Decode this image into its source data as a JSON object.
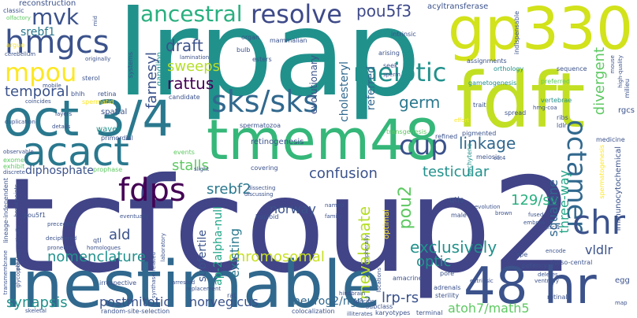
{
  "word_cloud": {
    "background": "#ffffff",
    "palette": [
      "#440154",
      "#3b528b",
      "#21918c",
      "#5ec962",
      "#fde725"
    ],
    "words": [
      {
        "text": "lrpap",
        "color": "#21918c"
      },
      {
        "text": "tcfcoup2",
        "color": "#414487"
      },
      {
        "text": "inestimable",
        "color": "#31688e"
      },
      {
        "text": "tmem48",
        "color": "#35b779"
      },
      {
        "text": "gp330",
        "color": "#d2e21b"
      },
      {
        "text": "fdft",
        "color": "#c2df23"
      },
      {
        "text": "oct 3/4",
        "color": "#2a788e"
      },
      {
        "text": "48 hr",
        "color": "#3b528b"
      },
      {
        "text": "sks/sks",
        "color": "#31688e"
      },
      {
        "text": "acact",
        "color": "#2a788e"
      },
      {
        "text": "hmgcs",
        "color": "#3b528b"
      },
      {
        "text": "mvk",
        "color": "#3b528b"
      },
      {
        "text": "mpou",
        "color": "#fde725"
      },
      {
        "text": "ancestral",
        "color": "#29af7f"
      },
      {
        "text": "resolve",
        "color": "#3e4a89"
      },
      {
        "text": "meiotic",
        "color": "#21918c"
      },
      {
        "text": "fdps",
        "color": "#440154"
      },
      {
        "text": "cup",
        "color": "#3b528b"
      },
      {
        "text": "octamer",
        "color": "#31688e"
      },
      {
        "text": "chr",
        "color": "#3b528b"
      },
      {
        "text": "pou5f3",
        "color": "#3e4989"
      },
      {
        "text": "temporal",
        "color": "#3b528b"
      },
      {
        "text": "rattus",
        "color": "#440154"
      },
      {
        "text": "sweeps",
        "color": "#b5de2b"
      },
      {
        "text": "draft",
        "color": "#3b528b"
      },
      {
        "text": "farnesyl",
        "color": "#3b528b"
      },
      {
        "text": "germ",
        "color": "#2a788e"
      },
      {
        "text": "linkage",
        "color": "#31688e"
      },
      {
        "text": "stalls",
        "color": "#5ec962"
      },
      {
        "text": "srebf2",
        "color": "#2a788e"
      },
      {
        "text": "confusion",
        "color": "#3b528b"
      },
      {
        "text": "testicular",
        "color": "#21918c"
      },
      {
        "text": "diphosphate",
        "color": "#3b528b"
      },
      {
        "text": "norway",
        "color": "#3b528b"
      },
      {
        "text": "nomenclature",
        "color": "#21918c"
      },
      {
        "text": "chromosomal",
        "color": "#c8e020"
      },
      {
        "text": "exclusively",
        "color": "#21918c"
      },
      {
        "text": "ald",
        "color": "#3b528b"
      },
      {
        "text": "mevalonate",
        "color": "#b5de2b"
      },
      {
        "text": "pou2",
        "color": "#5ec962"
      },
      {
        "text": "129/sv",
        "color": "#29af7f"
      },
      {
        "text": "squalene",
        "color": "#31688e"
      },
      {
        "text": "three-way",
        "color": "#20a486"
      },
      {
        "text": "divergent",
        "color": "#5ec962"
      },
      {
        "text": "synapsis",
        "color": "#21918c"
      },
      {
        "text": "postmitotic",
        "color": "#3b528b"
      },
      {
        "text": "norvegicus",
        "color": "#3b528b"
      },
      {
        "text": "neurog2/ngn2",
        "color": "#31688e"
      },
      {
        "text": "lrp-rs",
        "color": "#3b528b"
      },
      {
        "text": "atoh7/math5",
        "color": "#5ec962"
      },
      {
        "text": "vldlr",
        "color": "#3b528b"
      },
      {
        "text": "optic",
        "color": "#21918c"
      },
      {
        "text": "existing",
        "color": "#2a788e"
      },
      {
        "text": "subfertile",
        "color": "#3b528b"
      },
      {
        "text": "ap-2alpha-null",
        "color": "#20a486"
      },
      {
        "text": "referred",
        "color": "#31688e"
      },
      {
        "text": "cholesteryl",
        "color": "#31688e"
      },
      {
        "text": "evolutionary",
        "color": "#3b528b"
      },
      {
        "text": "srebf1",
        "color": "#2a788e"
      },
      {
        "text": "reconstruction",
        "color": "#3b528b"
      },
      {
        "text": "classic",
        "color": "#3b528b"
      },
      {
        "text": "olfactory",
        "color": "#5ec962"
      },
      {
        "text": "argue",
        "color": "#fde725"
      },
      {
        "text": "cerebellum",
        "color": "#3b528b"
      },
      {
        "text": "originally",
        "color": "#3b528b"
      },
      {
        "text": "systems",
        "color": "#3b528b"
      },
      {
        "text": "ganglion",
        "color": "#21918c"
      },
      {
        "text": "lamination",
        "color": "#3b528b"
      },
      {
        "text": "organ",
        "color": "#3b528b"
      },
      {
        "text": "bulb",
        "color": "#3b528b"
      },
      {
        "text": "esters",
        "color": "#3b528b"
      },
      {
        "text": "mammalian",
        "color": "#3b528b"
      },
      {
        "text": "intrinsic",
        "color": "#3b528b"
      },
      {
        "text": "acyltransferase",
        "color": "#3b528b"
      },
      {
        "text": "indispensable",
        "color": "#3b528b"
      },
      {
        "text": "sequence",
        "color": "#3b528b"
      },
      {
        "text": "assignments",
        "color": "#3b528b"
      },
      {
        "text": "orthology",
        "color": "#21918c"
      },
      {
        "text": "arising",
        "color": "#3b528b"
      },
      {
        "text": "seek",
        "color": "#3b528b"
      },
      {
        "text": "sperm",
        "color": "#3b528b"
      },
      {
        "text": "gametogenesis",
        "color": "#21918c"
      },
      {
        "text": "preferred",
        "color": "#5ec962"
      },
      {
        "text": "mouse",
        "color": "#3b528b"
      },
      {
        "text": "high-quality",
        "color": "#3b528b"
      },
      {
        "text": "milieu",
        "color": "#3b528b"
      },
      {
        "text": "vertebrae",
        "color": "#21918c"
      },
      {
        "text": "hmg-coa",
        "color": "#3b528b"
      },
      {
        "text": "trait",
        "color": "#3b528b"
      },
      {
        "text": "spread",
        "color": "#3b528b"
      },
      {
        "text": "ribs",
        "color": "#3b528b"
      },
      {
        "text": "ldlr",
        "color": "#3b528b"
      },
      {
        "text": "effort",
        "color": "#fde725"
      },
      {
        "text": "pigmented",
        "color": "#3b528b"
      },
      {
        "text": "pachytene",
        "color": "#21918c"
      },
      {
        "text": "refined",
        "color": "#3b528b"
      },
      {
        "text": "medicine",
        "color": "#3b528b"
      },
      {
        "text": "rgcs",
        "color": "#3b528b"
      },
      {
        "text": "spermatogenesis",
        "color": "#fde725"
      },
      {
        "text": "immunocytochemical",
        "color": "#3b528b"
      },
      {
        "text": "retina",
        "color": "#3b528b"
      },
      {
        "text": "spermatid",
        "color": "#fde725"
      },
      {
        "text": "spatial",
        "color": "#3b528b"
      },
      {
        "text": "waves",
        "color": "#21918c"
      },
      {
        "text": "primordial",
        "color": "#3b528b"
      },
      {
        "text": "sterol",
        "color": "#3b528b"
      },
      {
        "text": "mobile",
        "color": "#3b528b"
      },
      {
        "text": "layers",
        "color": "#3b528b"
      },
      {
        "text": "details",
        "color": "#3b528b"
      },
      {
        "text": "coincides",
        "color": "#3b528b"
      },
      {
        "text": "duplication",
        "color": "#3b528b"
      },
      {
        "text": "bhlh",
        "color": "#3b528b"
      },
      {
        "text": "candidate",
        "color": "#3b528b"
      },
      {
        "text": "spermatozoa",
        "color": "#3b528b"
      },
      {
        "text": "retinogenesis",
        "color": "#3b528b"
      },
      {
        "text": "events",
        "color": "#5ec962"
      },
      {
        "text": "transgenesis",
        "color": "#5ec962"
      },
      {
        "text": "meiosis",
        "color": "#3b528b"
      },
      {
        "text": "oct4",
        "color": "#3b528b"
      },
      {
        "text": "exome",
        "color": "#5ec962"
      },
      {
        "text": "exhibit",
        "color": "#5ec962"
      },
      {
        "text": "discrete",
        "color": "#3b528b"
      },
      {
        "text": "observable",
        "color": "#3b528b"
      },
      {
        "text": "lineage-independent",
        "color": "#3b528b"
      },
      {
        "text": "breakpoints",
        "color": "#3b528b"
      },
      {
        "text": "prophase",
        "color": "#5ec962"
      },
      {
        "text": "slight",
        "color": "#3b528b"
      },
      {
        "text": "covering",
        "color": "#3b528b"
      },
      {
        "text": "dissecting",
        "color": "#3b528b"
      },
      {
        "text": "discussing",
        "color": "#3b528b"
      },
      {
        "text": "haploid",
        "color": "#3b528b"
      },
      {
        "text": "named",
        "color": "#3b528b"
      },
      {
        "text": "family",
        "color": "#3b528b"
      },
      {
        "text": "qtls",
        "color": "#3b528b"
      },
      {
        "text": "evolution",
        "color": "#3b528b"
      },
      {
        "text": "male",
        "color": "#3b528b"
      },
      {
        "text": "brown",
        "color": "#3b528b"
      },
      {
        "text": "fused",
        "color": "#3b528b"
      },
      {
        "text": "embryo",
        "color": "#3b528b"
      },
      {
        "text": "pscl1",
        "color": "#3b528b"
      },
      {
        "text": "pou5f1",
        "color": "#3b528b"
      },
      {
        "text": "phylogenetically",
        "color": "#3b528b"
      },
      {
        "text": "preceding",
        "color": "#3b528b"
      },
      {
        "text": "deciphered",
        "color": "#3b528b"
      },
      {
        "text": "proneural",
        "color": "#3b528b"
      },
      {
        "text": "homologues",
        "color": "#3b528b"
      },
      {
        "text": "qtl",
        "color": "#3b528b"
      },
      {
        "text": "eventually",
        "color": "#3b528b"
      },
      {
        "text": "laboratory",
        "color": "#3b528b"
      },
      {
        "text": "glycoprotein",
        "color": "#3b528b"
      },
      {
        "text": "transmembrane",
        "color": "#3b528b"
      },
      {
        "text": "synthase-related",
        "color": "#3b528b"
      },
      {
        "text": "arrested",
        "color": "#3b528b"
      },
      {
        "text": "replacement",
        "color": "#3b528b"
      },
      {
        "text": "random-site-selection",
        "color": "#3b528b"
      },
      {
        "text": "irrespective",
        "color": "#3b528b"
      },
      {
        "text": "colocalization",
        "color": "#3b528b"
      },
      {
        "text": "subclass",
        "color": "#3b528b"
      },
      {
        "text": "karyotypes",
        "color": "#3b528b"
      },
      {
        "text": "terminal",
        "color": "#3b528b"
      },
      {
        "text": "amacrine",
        "color": "#3b528b"
      },
      {
        "text": "locations",
        "color": "#3b528b"
      },
      {
        "text": "peripherally",
        "color": "#3b528b"
      },
      {
        "text": "pore",
        "color": "#3b528b"
      },
      {
        "text": "extrinsic",
        "color": "#3b528b"
      },
      {
        "text": "adrenals",
        "color": "#3b528b"
      },
      {
        "text": "sterility",
        "color": "#3b528b"
      },
      {
        "text": "potency",
        "color": "#3b528b"
      },
      {
        "text": "deletes",
        "color": "#3b528b"
      },
      {
        "text": "ventrally",
        "color": "#3b528b"
      },
      {
        "text": "dorso-central",
        "color": "#3b528b"
      },
      {
        "text": "retinal",
        "color": "#3b528b"
      },
      {
        "text": "encode",
        "color": "#3b528b"
      },
      {
        "text": "rpe",
        "color": "#3b528b"
      },
      {
        "text": "egg",
        "color": "#3b528b"
      },
      {
        "text": "map",
        "color": "#3b528b"
      },
      {
        "text": "skeletal",
        "color": "#3b528b"
      },
      {
        "text": "optimal",
        "color": "#fde725"
      },
      {
        "text": "rat",
        "color": "#3b528b"
      },
      {
        "text": "mid",
        "color": "#3b528b"
      },
      {
        "text": "hindbrain",
        "color": "#3b528b"
      },
      {
        "text": "specific",
        "color": "#3b528b"
      },
      {
        "text": "illiterates",
        "color": "#3b528b"
      }
    ]
  }
}
